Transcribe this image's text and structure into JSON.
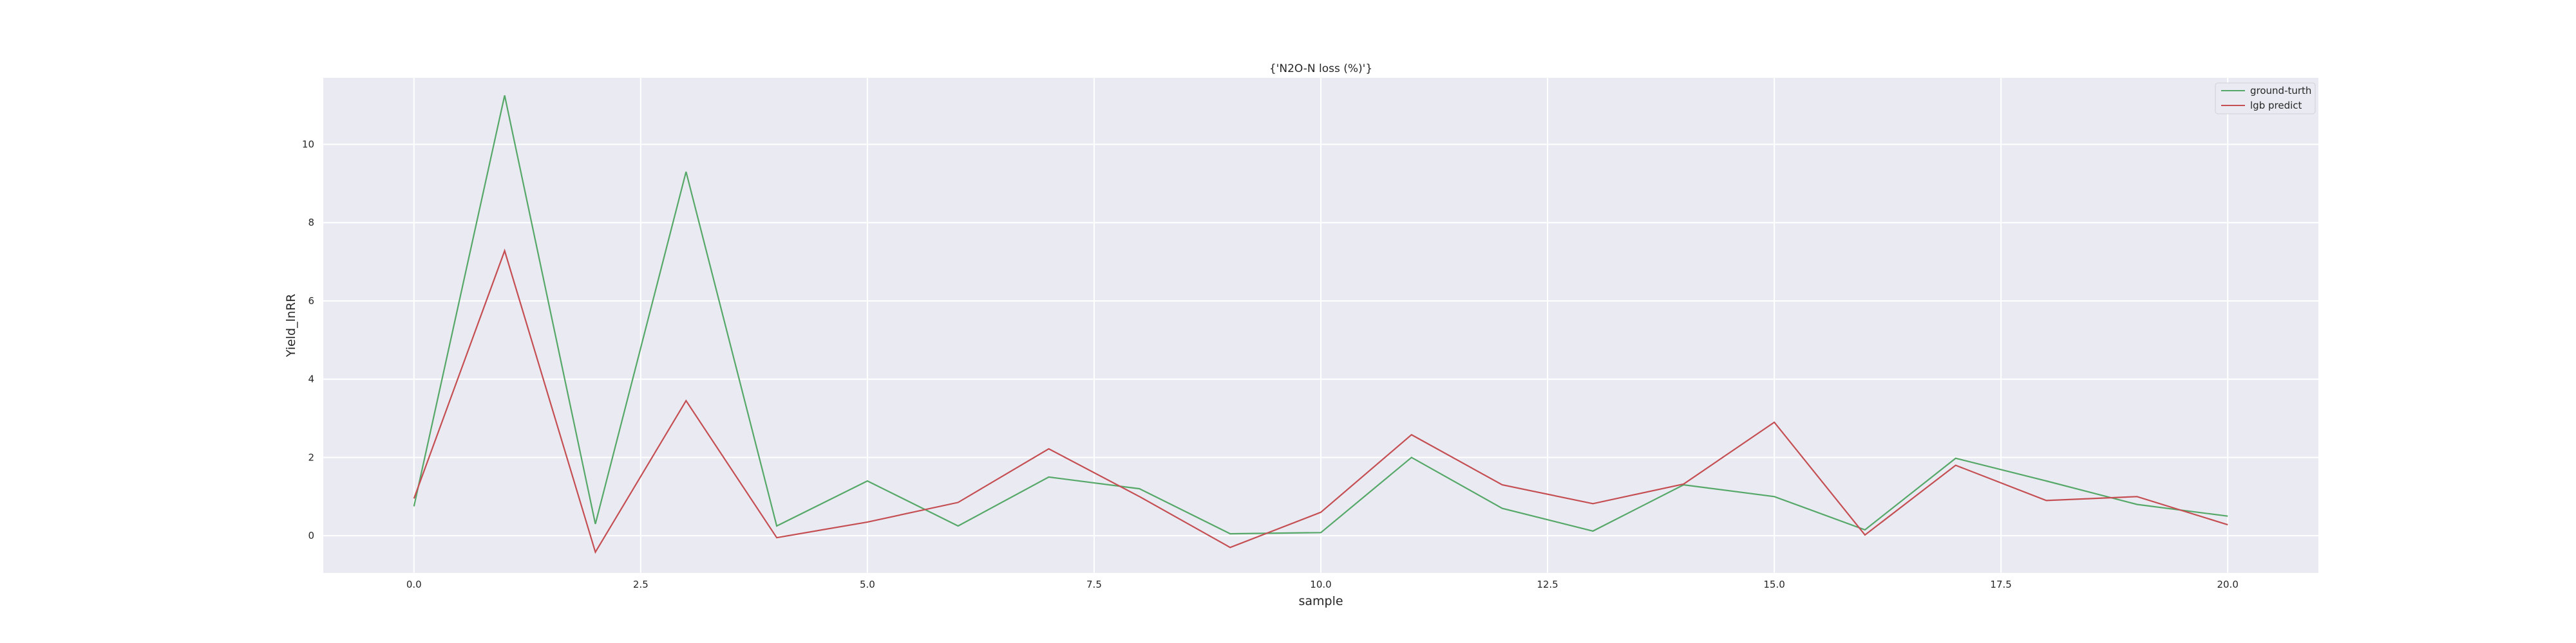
{
  "chart_data": {
    "type": "line",
    "title": "{'N2O-N loss (%)'}",
    "xlabel": "sample",
    "ylabel": "Yield_lnRR",
    "x": [
      0,
      1,
      2,
      3,
      4,
      5,
      6,
      7,
      8,
      9,
      10,
      11,
      12,
      13,
      14,
      15,
      16,
      17,
      18,
      19,
      20
    ],
    "xlim": [
      -1,
      21
    ],
    "ylim": [
      -0.95,
      11.7
    ],
    "xticks": [
      0.0,
      2.5,
      5.0,
      7.5,
      10.0,
      12.5,
      15.0,
      17.5,
      20.0
    ],
    "xtick_labels": [
      "0.0",
      "2.5",
      "5.0",
      "7.5",
      "10.0",
      "12.5",
      "15.0",
      "17.5",
      "20.0"
    ],
    "yticks": [
      0,
      2,
      4,
      6,
      8,
      10
    ],
    "ytick_labels": [
      "0",
      "2",
      "4",
      "6",
      "8",
      "10"
    ],
    "grid": true,
    "background": "#eaeaf2",
    "legend_position": "top-right",
    "series": [
      {
        "name": "ground-turth",
        "color": "#55a868",
        "values": [
          0.75,
          11.25,
          0.3,
          9.3,
          0.25,
          1.4,
          0.25,
          1.5,
          1.2,
          0.05,
          0.08,
          2.0,
          0.7,
          0.12,
          1.3,
          1.0,
          0.15,
          1.98,
          1.4,
          0.8,
          0.5
        ]
      },
      {
        "name": "lgb predict",
        "color": "#c44e52",
        "values": [
          0.95,
          7.28,
          -0.42,
          3.45,
          -0.05,
          0.35,
          0.85,
          2.22,
          1.0,
          -0.3,
          0.6,
          2.58,
          1.3,
          0.82,
          1.32,
          2.9,
          0.02,
          1.8,
          0.9,
          1.0,
          0.28
        ]
      }
    ]
  }
}
